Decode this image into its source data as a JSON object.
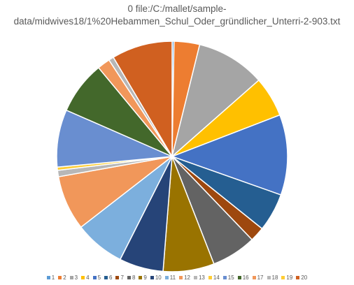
{
  "chart_data": {
    "type": "pie",
    "title_lines": [
      "0 file:/C:/mallet/sample-",
      "data/midwives18/1%20Hebammen_Schul_Oder_gründlicher_Unterri-2-903.txt"
    ],
    "categories": [
      "1",
      "2",
      "3",
      "4",
      "5",
      "6",
      "7",
      "8",
      "9",
      "10",
      "11",
      "12",
      "13",
      "14",
      "15",
      "16",
      "17",
      "18",
      "19",
      "20"
    ],
    "values": [
      0.3,
      4.0,
      10.8,
      6.3,
      12.6,
      6.0,
      2.3,
      7.0,
      8.0,
      6.9,
      7.9,
      8.6,
      1.0,
      0.5,
      9.0,
      8.3,
      2.0,
      0.8,
      0,
      9.5
    ],
    "colors": [
      "#5B9BD5",
      "#ED7D31",
      "#A5A5A5",
      "#FFC000",
      "#4472C4",
      "#255E91",
      "#9E480E",
      "#636363",
      "#997300",
      "#264478",
      "#7CAFDD",
      "#F1975A",
      "#B7B7B7",
      "#FFCD33",
      "#698ED0",
      "#43682B",
      "#F1975A",
      "#B7B7B7",
      "#FFCD33",
      "#D06020"
    ],
    "legend_position": "bottom"
  }
}
